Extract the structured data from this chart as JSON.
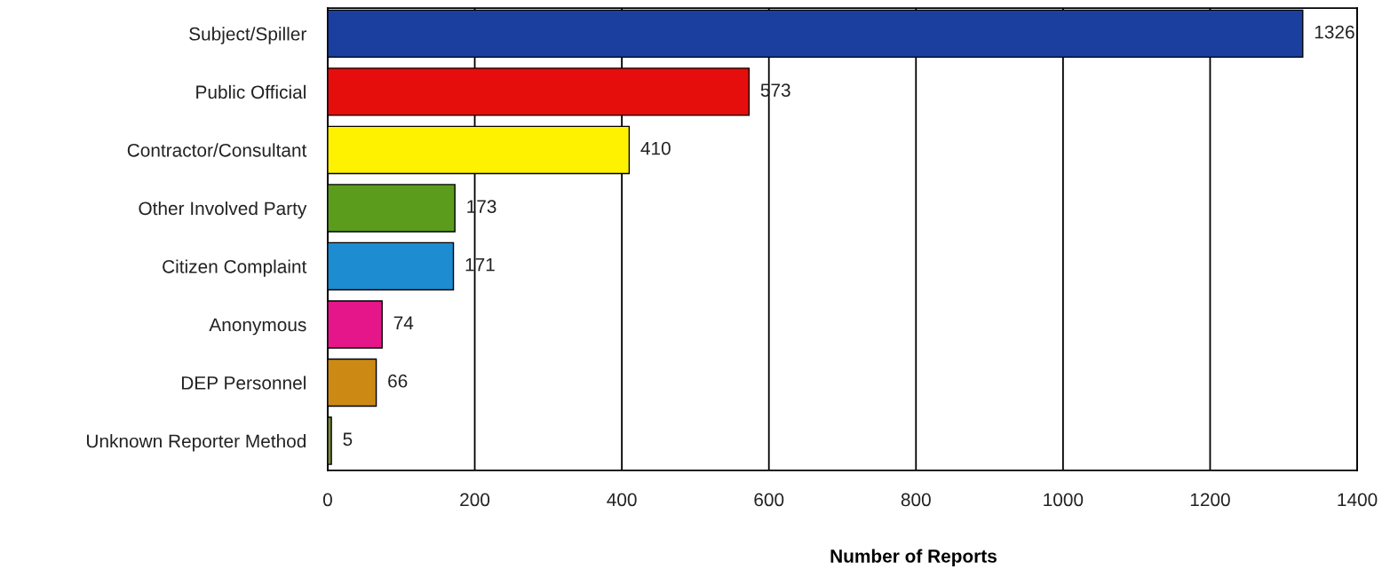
{
  "chart_data": {
    "type": "bar",
    "orientation": "horizontal",
    "xlabel": "Number of Reports",
    "categories": [
      "Subject/Spiller",
      "Public Official",
      "Contractor/Consultant",
      "Other Involved Party",
      "Citizen Complaint",
      "Anonymous",
      "DEP Personnel",
      "Unknown Reporter Method"
    ],
    "values": [
      1326,
      573,
      410,
      173,
      171,
      74,
      66,
      5
    ],
    "colors": [
      "#1a3f9e",
      "#e60d0d",
      "#fff200",
      "#5c9c1c",
      "#1e8cd0",
      "#e4168a",
      "#cc8a14",
      "#7a8c3c"
    ],
    "xlim": [
      0,
      1400
    ],
    "xticks": [
      0,
      200,
      400,
      600,
      800,
      1000,
      1200,
      1400
    ],
    "grid": "x",
    "data_labels": true
  }
}
